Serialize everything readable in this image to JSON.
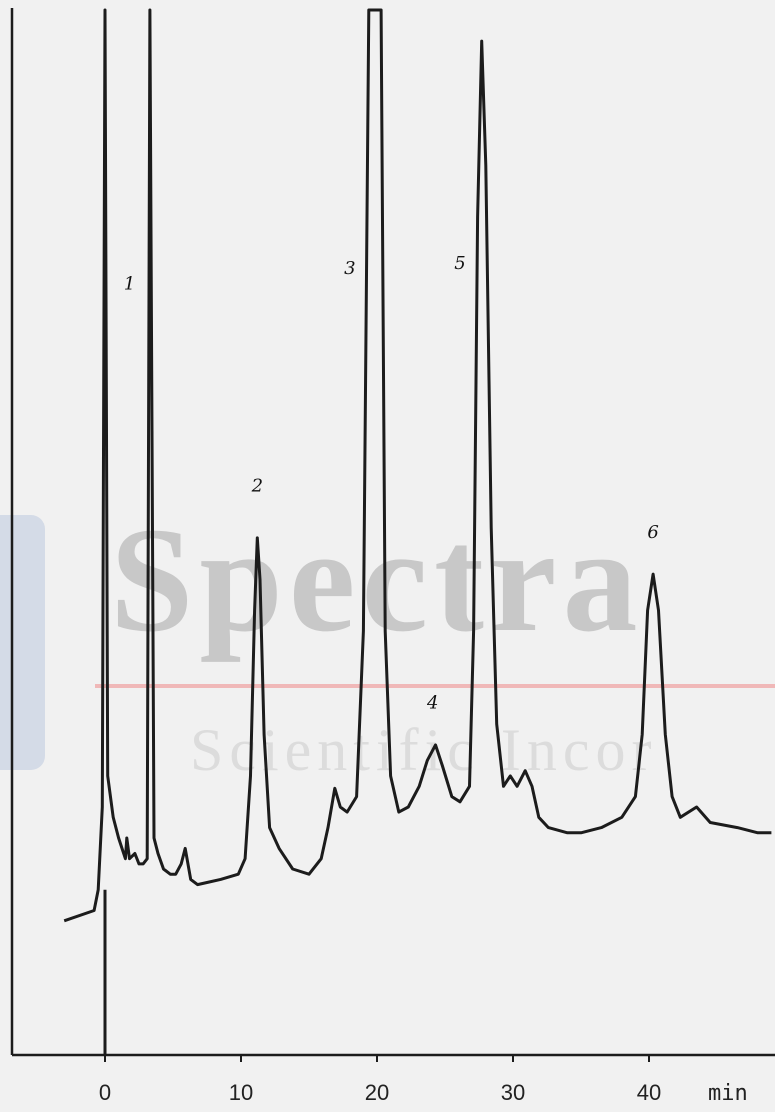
{
  "watermark": {
    "title": "Spectra",
    "subtitle": "Scientific Incor",
    "colors": {
      "text": "#c8c8c8",
      "rule": "#f0b8b8",
      "logo": "#c9d3e3"
    }
  },
  "chart_data": {
    "type": "line",
    "title": "",
    "xlabel": "min",
    "ylabel": "",
    "xlim": [
      -3,
      49
    ],
    "x_ticks": [
      {
        "value": 0,
        "label": "0"
      },
      {
        "value": 10,
        "label": "10"
      },
      {
        "value": 20,
        "label": "20"
      },
      {
        "value": 30,
        "label": "30"
      },
      {
        "value": 40,
        "label": "40"
      }
    ],
    "series": [
      {
        "points": [
          [
            -3,
            0.12
          ],
          [
            -0.8,
            0.13
          ],
          [
            -0.5,
            0.15
          ],
          [
            -0.2,
            0.23
          ],
          [
            0,
            1.0
          ],
          [
            0.2,
            0.26
          ],
          [
            0.6,
            0.22
          ],
          [
            1.0,
            0.2
          ],
          [
            1.5,
            0.18
          ],
          [
            1.6,
            0.2
          ],
          [
            1.8,
            0.18
          ],
          [
            2.2,
            0.185
          ],
          [
            2.5,
            0.175
          ],
          [
            2.8,
            0.175
          ],
          [
            3.1,
            0.18
          ],
          [
            3.3,
            1.0
          ],
          [
            3.6,
            0.2
          ],
          [
            3.9,
            0.185
          ],
          [
            4.3,
            0.17
          ],
          [
            4.8,
            0.165
          ],
          [
            5.2,
            0.165
          ],
          [
            5.6,
            0.175
          ],
          [
            5.9,
            0.19
          ],
          [
            6.3,
            0.16
          ],
          [
            6.8,
            0.155
          ],
          [
            7.5,
            0.157
          ],
          [
            8.5,
            0.16
          ],
          [
            9.8,
            0.165
          ],
          [
            10.3,
            0.18
          ],
          [
            10.7,
            0.26
          ],
          [
            11.0,
            0.42
          ],
          [
            11.2,
            0.49
          ],
          [
            11.4,
            0.45
          ],
          [
            11.7,
            0.3
          ],
          [
            12.1,
            0.21
          ],
          [
            12.8,
            0.19
          ],
          [
            13.8,
            0.17
          ],
          [
            15.0,
            0.165
          ],
          [
            15.9,
            0.18
          ],
          [
            16.4,
            0.21
          ],
          [
            16.9,
            0.248
          ],
          [
            17.3,
            0.23
          ],
          [
            17.8,
            0.225
          ],
          [
            18.5,
            0.24
          ],
          [
            19.0,
            0.4
          ],
          [
            19.4,
            1.0
          ],
          [
            20.3,
            1.0
          ],
          [
            20.6,
            0.4
          ],
          [
            21.0,
            0.26
          ],
          [
            21.6,
            0.225
          ],
          [
            22.3,
            0.23
          ],
          [
            23.1,
            0.25
          ],
          [
            23.7,
            0.275
          ],
          [
            24.3,
            0.29
          ],
          [
            24.8,
            0.27
          ],
          [
            25.5,
            0.24
          ],
          [
            26.1,
            0.235
          ],
          [
            26.8,
            0.25
          ],
          [
            27.1,
            0.4
          ],
          [
            27.4,
            0.8
          ],
          [
            27.7,
            0.97
          ],
          [
            28.0,
            0.85
          ],
          [
            28.4,
            0.5
          ],
          [
            28.8,
            0.31
          ],
          [
            29.3,
            0.25
          ],
          [
            29.8,
            0.26
          ],
          [
            30.3,
            0.25
          ],
          [
            30.9,
            0.265
          ],
          [
            31.4,
            0.25
          ],
          [
            31.9,
            0.22
          ],
          [
            32.6,
            0.21
          ],
          [
            34.0,
            0.205
          ],
          [
            35.0,
            0.205
          ],
          [
            36.5,
            0.21
          ],
          [
            38.0,
            0.22
          ],
          [
            39.0,
            0.24
          ],
          [
            39.5,
            0.3
          ],
          [
            39.9,
            0.42
          ],
          [
            40.3,
            0.455
          ],
          [
            40.7,
            0.42
          ],
          [
            41.2,
            0.3
          ],
          [
            41.7,
            0.24
          ],
          [
            42.3,
            0.22
          ],
          [
            43.5,
            0.23
          ],
          [
            44.5,
            0.215
          ],
          [
            46.5,
            0.21
          ],
          [
            48.0,
            0.205
          ],
          [
            49.0,
            0.205
          ]
        ]
      }
    ],
    "annotations": [
      {
        "label": "1",
        "x": 1.8,
        "y": 0.73
      },
      {
        "label": "2",
        "x": 11.2,
        "y": 0.535
      },
      {
        "label": "3",
        "x": 18.0,
        "y": 0.745
      },
      {
        "label": "4",
        "x": 24.1,
        "y": 0.325
      },
      {
        "label": "5",
        "x": 26.1,
        "y": 0.75
      },
      {
        "label": "6",
        "x": 40.3,
        "y": 0.49
      }
    ],
    "grid": false,
    "line_color": "#1c1c1c"
  }
}
